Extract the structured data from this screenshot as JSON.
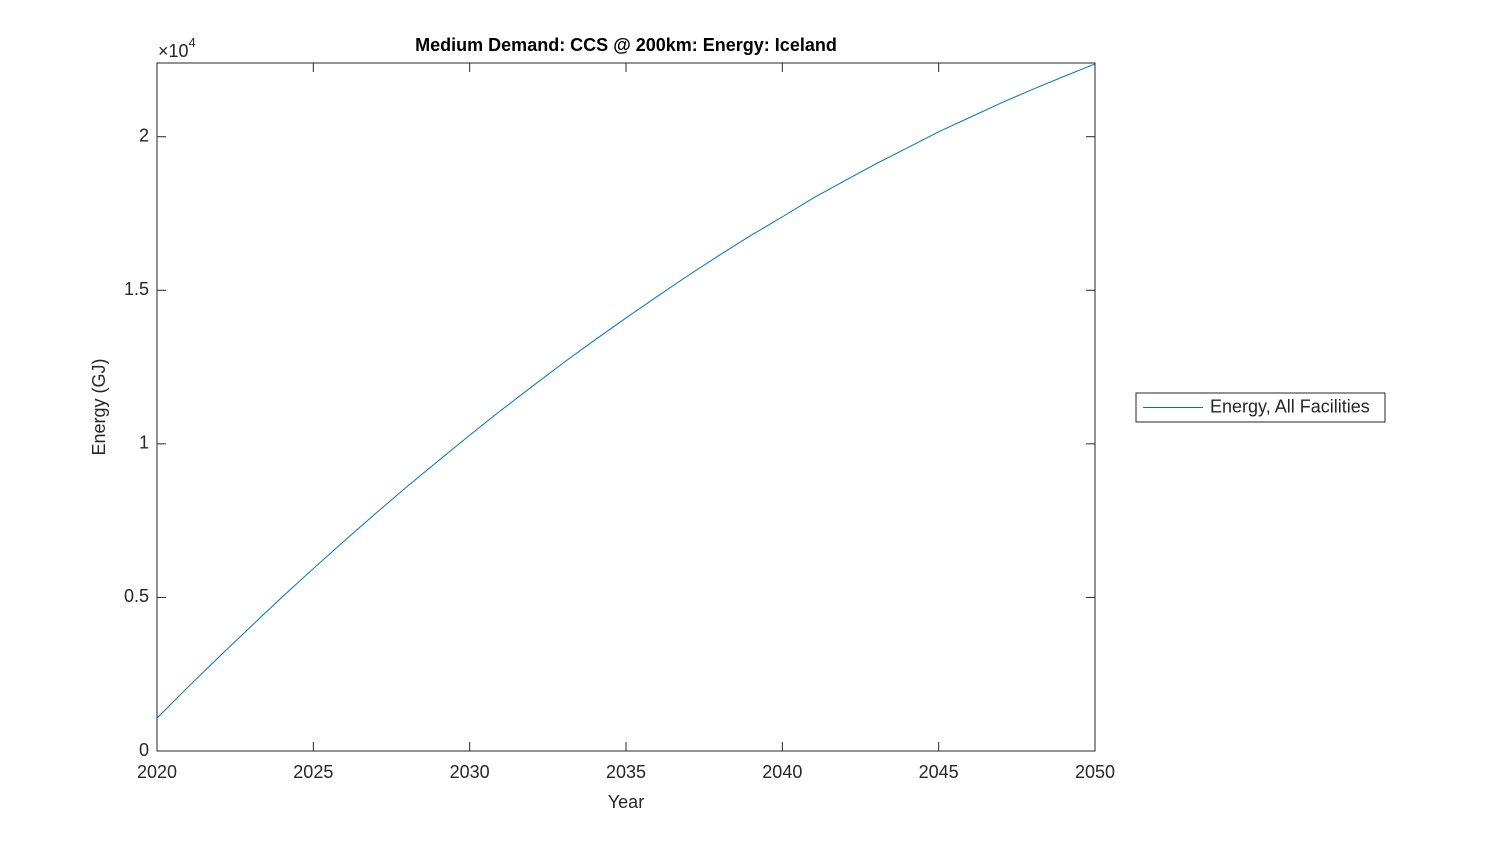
{
  "chart_data": {
    "type": "line",
    "title": "Medium Demand: CCS @ 200km: Energy: Iceland",
    "x_label": "Year",
    "y_label": "Energy (GJ)",
    "y_multiplier": {
      "base": "×10",
      "exponent": "4"
    },
    "x": [
      2020,
      2021,
      2022,
      2023,
      2024,
      2025,
      2026,
      2027,
      2028,
      2029,
      2030,
      2031,
      2032,
      2033,
      2034,
      2035,
      2036,
      2037,
      2038,
      2039,
      2040,
      2041,
      2042,
      2043,
      2044,
      2045,
      2046,
      2047,
      2048,
      2049,
      2050
    ],
    "series": [
      {
        "name": "Energy, All Facilities",
        "color": "#0072bd",
        "values": [
          0.107,
          0.209,
          0.308,
          0.405,
          0.501,
          0.594,
          0.685,
          0.774,
          0.861,
          0.945,
          1.028,
          1.109,
          1.187,
          1.264,
          1.338,
          1.41,
          1.48,
          1.549,
          1.615,
          1.679,
          1.739,
          1.801,
          1.857,
          1.912,
          1.964,
          2.016,
          2.063,
          2.11,
          2.154,
          2.196,
          2.237
        ]
      }
    ],
    "xlim": [
      2020,
      2050
    ],
    "xticks": [
      2020,
      2025,
      2030,
      2035,
      2040,
      2045,
      2050
    ],
    "ylim": [
      0,
      2.24
    ],
    "yticks": [
      0,
      0.5,
      1,
      1.5,
      2
    ],
    "grid": false,
    "legend": "outside-right"
  }
}
